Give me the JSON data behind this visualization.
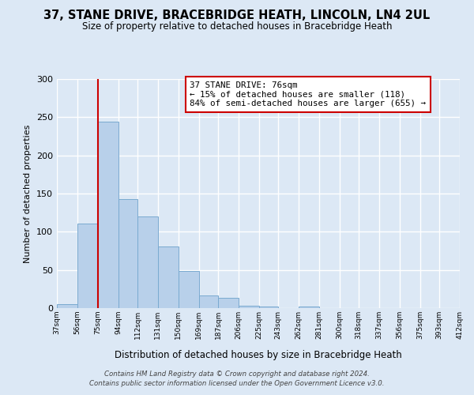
{
  "title": "37, STANE DRIVE, BRACEBRIDGE HEATH, LINCOLN, LN4 2UL",
  "subtitle": "Size of property relative to detached houses in Bracebridge Heath",
  "xlabel": "Distribution of detached houses by size in Bracebridge Heath",
  "ylabel": "Number of detached properties",
  "bar_color": "#b8d0ea",
  "bar_edge_color": "#7aaad0",
  "background_color": "#dce8f5",
  "axes_bg_color": "#dce8f5",
  "grid_color": "#ffffff",
  "annotation_box_color": "#cc0000",
  "annotation_text": "37 STANE DRIVE: 76sqm\n← 15% of detached houses are smaller (118)\n84% of semi-detached houses are larger (655) →",
  "red_line_x": 75,
  "bins": [
    37,
    56,
    75,
    94,
    112,
    131,
    150,
    169,
    187,
    206,
    225,
    243,
    262,
    281,
    300,
    318,
    337,
    356,
    375,
    393,
    412
  ],
  "bar_heights": [
    5,
    111,
    244,
    143,
    120,
    81,
    49,
    17,
    13,
    3,
    2,
    0,
    2,
    0,
    0,
    0,
    0,
    0,
    0,
    0
  ],
  "tick_labels": [
    "37sqm",
    "56sqm",
    "75sqm",
    "94sqm",
    "112sqm",
    "131sqm",
    "150sqm",
    "169sqm",
    "187sqm",
    "206sqm",
    "225sqm",
    "243sqm",
    "262sqm",
    "281sqm",
    "300sqm",
    "318sqm",
    "337sqm",
    "356sqm",
    "375sqm",
    "393sqm",
    "412sqm"
  ],
  "ylim": [
    0,
    300
  ],
  "yticks": [
    0,
    50,
    100,
    150,
    200,
    250,
    300
  ],
  "title_fontsize": 10,
  "subtitle_fontsize": 8.5,
  "footer_line1": "Contains HM Land Registry data © Crown copyright and database right 2024.",
  "footer_line2": "Contains public sector information licensed under the Open Government Licence v3.0."
}
